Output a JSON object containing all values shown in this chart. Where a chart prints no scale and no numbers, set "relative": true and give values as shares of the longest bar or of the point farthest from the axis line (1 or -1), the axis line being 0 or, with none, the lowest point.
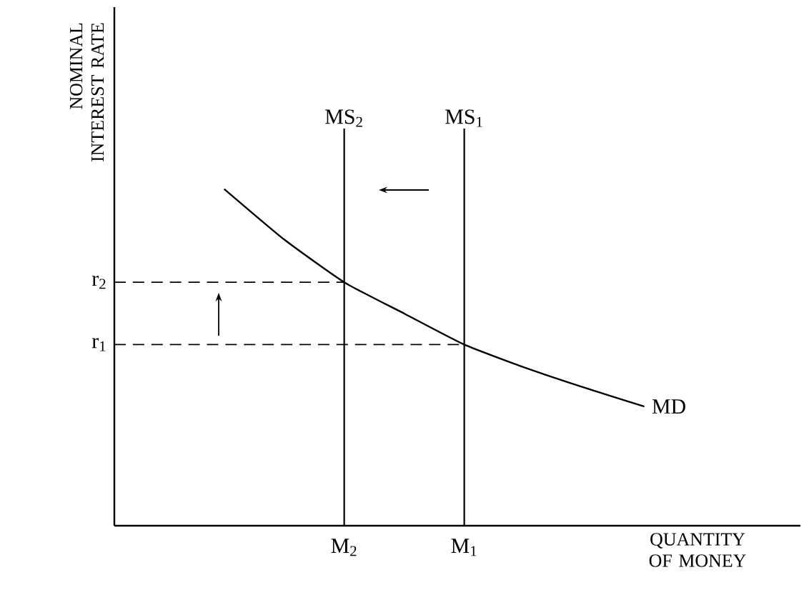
{
  "chart_data": {
    "type": "line",
    "relative": true,
    "xlabel": "QUANTITY OF MONEY",
    "annotations": [
      "NOMINAL INTEREST RATE"
    ],
    "tick_labels": "x",
    "categories": [
      null,
      null,
      "M$_{2}$",
      null,
      "M$_{1}$",
      null,
      null,
      null
    ],
    "series": [
      {
        "name": "MD",
        "color": "#000000",
        "values": [
          1,
          0.85,
          0.723,
          0.63,
          0.538,
          0.47,
          0.41,
          0.354
        ]
      }
    ],
    "ref_lines": [
      {
        "axis": "x",
        "value": "M$_{2}$",
        "label": "MS$_{2}$"
      },
      {
        "axis": "x",
        "value": "M$_{1}$",
        "label": "MS$_{1}$"
      },
      {
        "axis": "y",
        "value": 0.723,
        "label": "r$_{2}$",
        "line_style": "dashed"
      },
      {
        "axis": "y",
        "value": 0.538,
        "label": "r$_{1}$",
        "line_style": "dashed"
      }
    ]
  }
}
